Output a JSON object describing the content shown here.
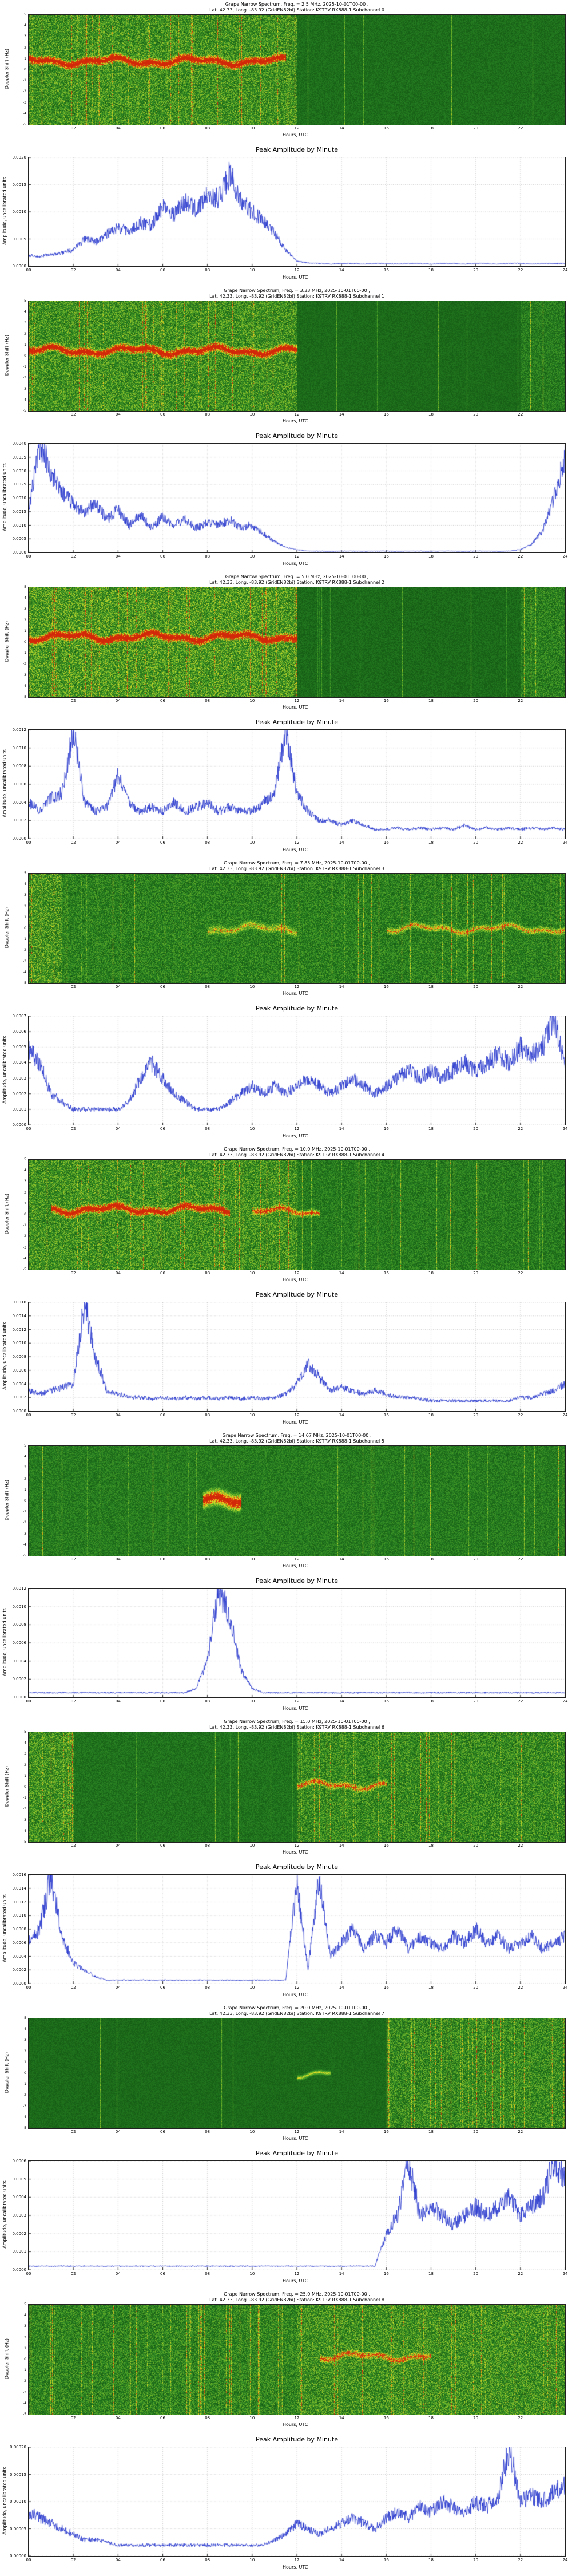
{
  "colors": {
    "line": "#2333cc",
    "grid": "#b8b8b8",
    "axis": "#222222",
    "spec_low": "#082d08",
    "spec_mid": "#2f8f2f",
    "spec_hot": "#d22808"
  },
  "shared": {
    "amplitude_title": "Peak Amplitude by Minute",
    "amplitude_ylabel": "Amplitude, uncalibrated units",
    "xlabel": "Hours, UTC",
    "spec_ylabel": "Doppler Shift (Hz)",
    "spec_x_ticks": [
      "02",
      "04",
      "06",
      "08",
      "10",
      "12",
      "14",
      "16",
      "18",
      "20",
      "22"
    ],
    "amp_x_ticks": [
      "00",
      "02",
      "04",
      "06",
      "08",
      "10",
      "12",
      "14",
      "16",
      "18",
      "20",
      "22",
      "24"
    ],
    "spec_y_ticks": [
      "5",
      "4",
      "3",
      "2",
      "1",
      "0",
      "-1",
      "-2",
      "-3",
      "-4",
      "-5"
    ],
    "x_range": [
      0,
      24
    ]
  },
  "chart_data": [
    {
      "subchannel": 0,
      "spectrogram": {
        "type": "heatmap",
        "title_line1": "Grape Narrow Spectrum, Freq. = 2.5 MHz, 2025-10-01T00-00 ,",
        "title_line2": "Lat. 42.33, Long. -83.92 (GridEN82bi) Station: K9TRV RX888-1 Subchannel 0",
        "features": {
          "regions": [
            [
              0,
              12,
              0.55,
              0.28,
              0.5
            ],
            [
              12,
              24,
              0.4,
              0.1,
              0.08
            ]
          ],
          "bands": [
            [
              0,
              11.5,
              0.42,
              0.05,
              1.0
            ]
          ],
          "seed": 11
        }
      },
      "amplitude": {
        "type": "line",
        "y_max": 0.002,
        "y_ticks": [
          "0.0000",
          "0.0005",
          "0.0010",
          "0.0015",
          "0.0020"
        ],
        "t_step": 0.5,
        "values": [
          0.0002,
          0.00018,
          0.00022,
          0.00025,
          0.0003,
          0.0005,
          0.00045,
          0.0006,
          0.0007,
          0.00065,
          0.0008,
          0.00075,
          0.0011,
          0.00095,
          0.0012,
          0.00105,
          0.0013,
          0.00125,
          0.0017,
          0.0012,
          0.001,
          0.00085,
          0.0006,
          0.0003,
          0.0001,
          6e-05,
          5e-05,
          4e-05,
          5e-05,
          5e-05,
          4e-05,
          5e-05,
          5e-05,
          4e-05,
          5e-05,
          5e-05,
          4e-05,
          5e-05,
          5e-05,
          4e-05,
          5e-05,
          5e-05,
          4e-05,
          5e-05,
          5e-05,
          4e-05,
          5e-05,
          5e-05,
          5e-05
        ]
      }
    },
    {
      "subchannel": 1,
      "spectrogram": {
        "type": "heatmap",
        "title_line1": "Grape Narrow Spectrum, Freq. = 3.33 MHz, 2025-10-01T00-00 ,",
        "title_line2": "Lat. 42.33, Long. -83.92 (GridEN82bi) Station: K9TRV RX888-1 Subchannel 1",
        "features": {
          "regions": [
            [
              0,
              12,
              0.55,
              0.28,
              0.5
            ],
            [
              12,
              22,
              0.38,
              0.08,
              0.06
            ],
            [
              22,
              24,
              0.46,
              0.18,
              0.3
            ]
          ],
          "bands": [
            [
              0,
              12,
              0.45,
              0.05,
              1.0
            ]
          ],
          "seed": 22
        }
      },
      "amplitude": {
        "type": "line",
        "y_max": 0.004,
        "y_ticks": [
          "0.0000",
          "0.0005",
          "0.0010",
          "0.0015",
          "0.0020",
          "0.0025",
          "0.0030",
          "0.0035",
          "0.0040"
        ],
        "t_step": 0.5,
        "values": [
          0.0015,
          0.004,
          0.003,
          0.0022,
          0.0018,
          0.0015,
          0.0018,
          0.0012,
          0.0016,
          0.001,
          0.0014,
          0.0009,
          0.0013,
          0.001,
          0.0012,
          0.0009,
          0.0011,
          0.001,
          0.0012,
          0.0009,
          0.001,
          0.0007,
          0.0004,
          0.0002,
          0.0001,
          5e-05,
          5e-05,
          4e-05,
          5e-05,
          5e-05,
          4e-05,
          5e-05,
          5e-05,
          4e-05,
          5e-05,
          5e-05,
          4e-05,
          5e-05,
          5e-05,
          4e-05,
          5e-05,
          5e-05,
          4e-05,
          5e-05,
          0.0001,
          0.0003,
          0.0008,
          0.002,
          0.0035
        ]
      }
    },
    {
      "subchannel": 2,
      "spectrogram": {
        "type": "heatmap",
        "title_line1": "Grape Narrow Spectrum, Freq. = 5.0 MHz, 2025-10-01T00-00 ,",
        "title_line2": "Lat. 42.33, Long. -83.92 (GridEN82bi) Station: K9TRV RX888-1 Subchannel 2",
        "features": {
          "regions": [
            [
              0,
              12,
              0.58,
              0.3,
              0.6
            ],
            [
              12,
              22,
              0.38,
              0.1,
              0.1
            ],
            [
              22,
              24,
              0.48,
              0.22,
              0.4
            ]
          ],
          "bands": [
            [
              0,
              12,
              0.45,
              0.05,
              1.0
            ]
          ],
          "seed": 33
        }
      },
      "amplitude": {
        "type": "line",
        "y_max": 0.0012,
        "y_ticks": [
          "0.0000",
          "0.0002",
          "0.0004",
          "0.0006",
          "0.0008",
          "0.0010",
          "0.0012"
        ],
        "t_step": 0.5,
        "values": [
          0.0004,
          0.0003,
          0.00045,
          0.0005,
          0.0012,
          0.0004,
          0.0003,
          0.00035,
          0.0007,
          0.0004,
          0.0003,
          0.00035,
          0.0003,
          0.0004,
          0.0003,
          0.00035,
          0.0004,
          0.0003,
          0.00035,
          0.0003,
          0.0003,
          0.0004,
          0.0005,
          0.0012,
          0.0005,
          0.0003,
          0.0002,
          0.0002,
          0.00015,
          0.0002,
          0.00015,
          0.0001,
          0.0001,
          0.00012,
          0.0001,
          0.00012,
          0.0001,
          0.00012,
          0.0001,
          0.00015,
          0.0001,
          0.00012,
          0.0001,
          0.00012,
          0.0001,
          0.00012,
          0.0001,
          0.00012,
          0.0001
        ]
      }
    },
    {
      "subchannel": 3,
      "spectrogram": {
        "type": "heatmap",
        "title_line1": "Grape Narrow Spectrum, Freq. = 7.85 MHz, 2025-10-01T00-00 ,",
        "title_line2": "Lat. 42.33, Long. -83.92 (GridEN82bi) Station: K9TRV RX888-1 Subchannel 3",
        "features": {
          "regions": [
            [
              0,
              1.5,
              0.56,
              0.3,
              0.7
            ],
            [
              1.5,
              24,
              0.48,
              0.22,
              0.35
            ]
          ],
          "bands": [
            [
              8,
              12,
              0.5,
              0.05,
              0.45
            ],
            [
              16,
              24,
              0.5,
              0.04,
              0.55
            ]
          ],
          "seed": 44
        }
      },
      "amplitude": {
        "type": "line",
        "y_max": 0.0007,
        "y_ticks": [
          "0.0000",
          "0.0001",
          "0.0002",
          "0.0003",
          "0.0004",
          "0.0005",
          "0.0006",
          "0.0007"
        ],
        "t_step": 0.5,
        "values": [
          0.0005,
          0.0004,
          0.0002,
          0.00015,
          0.0001,
          0.0001,
          0.0001,
          0.0001,
          0.0001,
          0.00015,
          0.0003,
          0.0004,
          0.0003,
          0.0002,
          0.00015,
          0.0001,
          0.0001,
          0.0001,
          0.00015,
          0.0002,
          0.00025,
          0.0002,
          0.00025,
          0.0002,
          0.00025,
          0.0003,
          0.00025,
          0.0002,
          0.00025,
          0.0003,
          0.00025,
          0.0002,
          0.00025,
          0.0003,
          0.00035,
          0.0003,
          0.00035,
          0.0003,
          0.00035,
          0.0004,
          0.00035,
          0.0004,
          0.00045,
          0.0004,
          0.0005,
          0.00045,
          0.0005,
          0.0007,
          0.0004
        ]
      }
    },
    {
      "subchannel": 4,
      "spectrogram": {
        "type": "heatmap",
        "title_line1": "Grape Narrow Spectrum, Freq. = 10.0 MHz, 2025-10-01T00-00 ,",
        "title_line2": "Lat. 42.33, Long. -83.92 (GridEN82bi) Station: K9TRV RX888-1 Subchannel 4",
        "features": {
          "regions": [
            [
              0,
              12,
              0.55,
              0.28,
              0.55
            ],
            [
              12,
              24,
              0.46,
              0.18,
              0.3
            ]
          ],
          "bands": [
            [
              1,
              9,
              0.45,
              0.05,
              0.95
            ],
            [
              10,
              13,
              0.47,
              0.04,
              0.7
            ]
          ],
          "seed": 55
        }
      },
      "amplitude": {
        "type": "line",
        "y_max": 0.0016,
        "y_ticks": [
          "0.0000",
          "0.0002",
          "0.0004",
          "0.0006",
          "0.0008",
          "0.0010",
          "0.0012",
          "0.0014",
          "0.0016"
        ],
        "t_step": 0.5,
        "values": [
          0.0003,
          0.00025,
          0.0003,
          0.00035,
          0.0004,
          0.0016,
          0.0008,
          0.0003,
          0.00025,
          0.0002,
          0.0002,
          0.00018,
          0.0002,
          0.00018,
          0.0002,
          0.00018,
          0.0002,
          0.00018,
          0.0002,
          0.00018,
          0.0002,
          0.00018,
          0.0002,
          0.00025,
          0.0004,
          0.0007,
          0.0005,
          0.0003,
          0.00035,
          0.0003,
          0.00025,
          0.0003,
          0.00025,
          0.0002,
          0.0002,
          0.00018,
          0.00015,
          0.00015,
          0.00015,
          0.00015,
          0.00015,
          0.00015,
          0.00015,
          0.00015,
          0.0002,
          0.0002,
          0.00025,
          0.0003,
          0.0004
        ]
      }
    },
    {
      "subchannel": 5,
      "spectrogram": {
        "type": "heatmap",
        "title_line1": "Grape Narrow Spectrum, Freq. = 14.67 MHz, 2025-10-01T00-00 ,",
        "title_line2": "Lat. 42.33, Long. -83.92 (GridEN82bi) Station: K9TRV RX888-1 Subchannel 5",
        "features": {
          "regions": [
            [
              0,
              24,
              0.46,
              0.16,
              0.2
            ]
          ],
          "bands": [
            [
              7.8,
              9.5,
              0.5,
              0.1,
              0.9
            ]
          ],
          "seed": 66
        }
      },
      "amplitude": {
        "type": "line",
        "y_max": 0.0012,
        "y_ticks": [
          "0.0000",
          "0.0002",
          "0.0004",
          "0.0006",
          "0.0008",
          "0.0010",
          "0.0012"
        ],
        "t_step": 0.5,
        "values": [
          5e-05,
          5e-05,
          5e-05,
          5e-05,
          5e-05,
          5e-05,
          5e-05,
          5e-05,
          5e-05,
          5e-05,
          5e-05,
          5e-05,
          5e-05,
          5e-05,
          5e-05,
          0.0001,
          0.0004,
          0.0012,
          0.0009,
          0.0003,
          0.0001,
          5e-05,
          5e-05,
          5e-05,
          5e-05,
          5e-05,
          5e-05,
          5e-05,
          5e-05,
          5e-05,
          5e-05,
          5e-05,
          5e-05,
          5e-05,
          5e-05,
          5e-05,
          5e-05,
          5e-05,
          5e-05,
          5e-05,
          5e-05,
          5e-05,
          5e-05,
          5e-05,
          5e-05,
          5e-05,
          5e-05,
          5e-05,
          5e-05
        ]
      }
    },
    {
      "subchannel": 6,
      "spectrogram": {
        "type": "heatmap",
        "title_line1": "Grape Narrow Spectrum, Freq. = 15.0 MHz, 2025-10-01T00-00 ,",
        "title_line2": "Lat. 42.33, Long. -83.92 (GridEN82bi) Station: K9TRV RX888-1 Subchannel 6",
        "features": {
          "regions": [
            [
              0,
              2,
              0.55,
              0.28,
              0.6
            ],
            [
              2,
              12,
              0.42,
              0.12,
              0.1
            ],
            [
              12,
              24,
              0.52,
              0.26,
              0.55
            ]
          ],
          "bands": [
            [
              12,
              16,
              0.48,
              0.04,
              0.6
            ]
          ],
          "seed": 77
        }
      },
      "amplitude": {
        "type": "line",
        "y_max": 0.0016,
        "y_ticks": [
          "0.0000",
          "0.0002",
          "0.0004",
          "0.0006",
          "0.0008",
          "0.0010",
          "0.0012",
          "0.0014",
          "0.0016"
        ],
        "t_step": 0.5,
        "values": [
          0.0006,
          0.0008,
          0.0016,
          0.0007,
          0.0003,
          0.0002,
          0.0001,
          5e-05,
          5e-05,
          5e-05,
          5e-05,
          5e-05,
          5e-05,
          5e-05,
          5e-05,
          5e-05,
          5e-05,
          5e-05,
          5e-05,
          5e-05,
          5e-05,
          5e-05,
          5e-05,
          5e-05,
          0.0015,
          0.0002,
          0.0016,
          0.0004,
          0.0006,
          0.0008,
          0.0005,
          0.0007,
          0.0006,
          0.0008,
          0.0005,
          0.0007,
          0.0006,
          0.0005,
          0.0007,
          0.0006,
          0.0008,
          0.0006,
          0.0007,
          0.0005,
          0.0006,
          0.0007,
          0.0005,
          0.0006,
          0.0007
        ]
      }
    },
    {
      "subchannel": 7,
      "spectrogram": {
        "type": "heatmap",
        "title_line1": "Grape Narrow Spectrum, Freq. = 20.0 MHz, 2025-10-01T00-00 ,",
        "title_line2": "Lat. 42.33, Long. -83.92 (GridEN82bi) Station: K9TRV RX888-1 Subchannel 7",
        "features": {
          "regions": [
            [
              0,
              16,
              0.38,
              0.08,
              0.05
            ],
            [
              16,
              24,
              0.52,
              0.26,
              0.6
            ]
          ],
          "bands": [
            [
              12,
              13.5,
              0.5,
              0.03,
              0.55
            ]
          ],
          "seed": 88
        }
      },
      "amplitude": {
        "type": "line",
        "y_max": 0.0006,
        "y_ticks": [
          "0.0000",
          "0.0001",
          "0.0002",
          "0.0003",
          "0.0004",
          "0.0005",
          "0.0006"
        ],
        "t_step": 0.5,
        "values": [
          2e-05,
          2e-05,
          2e-05,
          2e-05,
          2e-05,
          2e-05,
          2e-05,
          2e-05,
          2e-05,
          2e-05,
          2e-05,
          2e-05,
          2e-05,
          2e-05,
          2e-05,
          2e-05,
          2e-05,
          2e-05,
          2e-05,
          2e-05,
          2e-05,
          2e-05,
          2e-05,
          2e-05,
          2e-05,
          2e-05,
          2e-05,
          2e-05,
          2e-05,
          2e-05,
          2e-05,
          2e-05,
          0.0002,
          0.0003,
          0.0006,
          0.0003,
          0.00035,
          0.0003,
          0.00025,
          0.0003,
          0.00035,
          0.0003,
          0.00035,
          0.0004,
          0.0003,
          0.00035,
          0.0004,
          0.0006,
          0.0005
        ]
      }
    },
    {
      "subchannel": 8,
      "spectrogram": {
        "type": "heatmap",
        "title_line1": "Grape Narrow Spectrum, Freq. = 25.0 MHz, 2025-10-01T00-00 ,",
        "title_line2": "Lat. 42.33, Long. -83.92 (GridEN82bi) Station: K9TRV RX888-1 Subchannel 8",
        "features": {
          "regions": [
            [
              0,
              12,
              0.5,
              0.24,
              0.45
            ],
            [
              12,
              24,
              0.55,
              0.28,
              0.6
            ]
          ],
          "bands": [
            [
              13,
              18,
              0.47,
              0.04,
              0.6
            ]
          ],
          "seed": 99
        }
      },
      "amplitude": {
        "type": "line",
        "y_max": 0.0002,
        "y_ticks": [
          "0.00000",
          "0.00005",
          "0.00010",
          "0.00015",
          "0.00020"
        ],
        "t_step": 0.5,
        "values": [
          8e-05,
          7e-05,
          6e-05,
          5e-05,
          4e-05,
          3e-05,
          3e-05,
          2.5e-05,
          2e-05,
          2e-05,
          2e-05,
          2e-05,
          2e-05,
          2e-05,
          2e-05,
          2e-05,
          2e-05,
          2e-05,
          2e-05,
          2e-05,
          2e-05,
          2e-05,
          3e-05,
          4e-05,
          6e-05,
          5e-05,
          4e-05,
          5e-05,
          6e-05,
          7e-05,
          6e-05,
          5e-05,
          7e-05,
          8e-05,
          7e-05,
          9e-05,
          8e-05,
          0.0001,
          9e-05,
          8e-05,
          0.0001,
          9e-05,
          0.00011,
          0.0002,
          0.0001,
          0.00011,
          0.0001,
          0.00012,
          0.00013
        ]
      }
    }
  ]
}
